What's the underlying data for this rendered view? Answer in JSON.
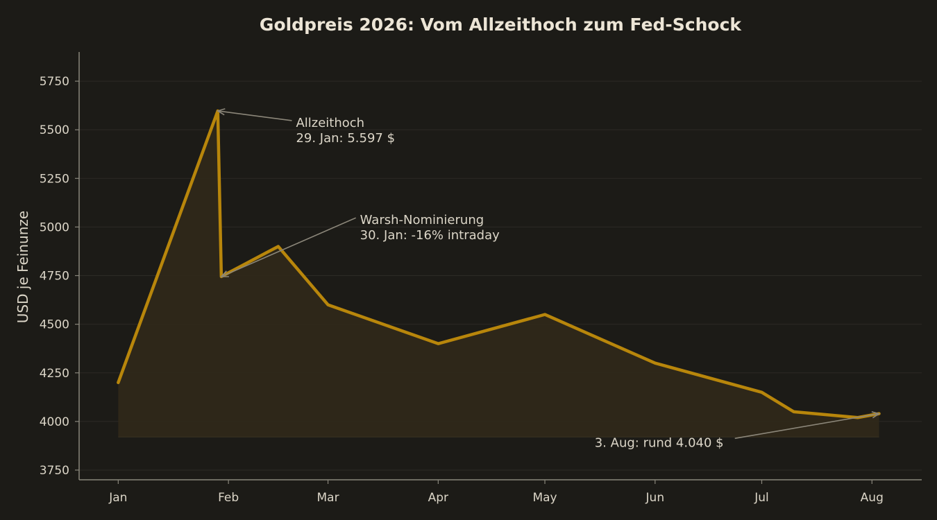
{
  "chart_data": {
    "type": "area",
    "title": "Goldpreis 2026: Vom Allzeithoch zum Fed-Schock",
    "xlabel": "",
    "ylabel": "USD je Feinunze",
    "x_ticks": [
      "Jan",
      "Feb",
      "Mar",
      "Apr",
      "May",
      "Jun",
      "Jul",
      "Aug"
    ],
    "y_ticks": [
      3750,
      4000,
      4250,
      4500,
      4750,
      5000,
      5250,
      5500,
      5750
    ],
    "xlim": [
      "2025-12-21",
      "2026-08-15"
    ],
    "ylim": [
      3700,
      5900
    ],
    "fill_baseline": 3920,
    "series": [
      {
        "values": [
          {
            "x": "2026-01-01",
            "y": 4200
          },
          {
            "x": "2026-01-29",
            "y": 5597
          },
          {
            "x": "2026-01-30",
            "y": 4745
          },
          {
            "x": "2026-02-15",
            "y": 4900
          },
          {
            "x": "2026-03-01",
            "y": 4600
          },
          {
            "x": "2026-04-01",
            "y": 4400
          },
          {
            "x": "2026-05-01",
            "y": 4550
          },
          {
            "x": "2026-06-01",
            "y": 4300
          },
          {
            "x": "2026-07-01",
            "y": 4150
          },
          {
            "x": "2026-07-10",
            "y": 4050
          },
          {
            "x": "2026-07-28",
            "y": 4020
          },
          {
            "x": "2026-08-03",
            "y": 4040
          }
        ]
      }
    ],
    "annotations": [
      {
        "lines": [
          "Allzeithoch",
          "29. Jan: 5.597 $"
        ],
        "target": {
          "x": "2026-01-29",
          "y": 5597
        },
        "text_pos": {
          "x": "2026-02-20",
          "y": 5515
        }
      },
      {
        "lines": [
          "Warsh-Nominierung",
          "30. Jan: -16% intraday"
        ],
        "target": {
          "x": "2026-01-30",
          "y": 4745
        },
        "text_pos": {
          "x": "2026-03-10",
          "y": 5015
        }
      },
      {
        "lines": [
          "3. Aug: rund 4.040 $"
        ],
        "target": {
          "x": "2026-08-03",
          "y": 4040
        },
        "text_pos": {
          "x": "2026-05-15",
          "y": 3870
        }
      }
    ],
    "grid": true,
    "colors": {
      "background": "#1c1b17",
      "line": "#b8860b",
      "fill": "#2f2819",
      "grid": "#2c2b26",
      "axis": "#8a877c",
      "text": "#dcd6c8",
      "title": "#ece5d6",
      "arrow": "#8c877a"
    }
  }
}
